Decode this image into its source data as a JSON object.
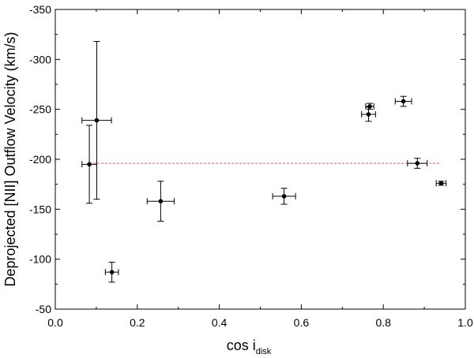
{
  "chart_data": {
    "type": "scatter",
    "xlabel": "cos i",
    "xlabel_subscript": "disk",
    "ylabel": "Deprojected [NII] Outflow Velocity  (km/s)",
    "xlim": [
      0.0,
      1.0
    ],
    "ylim": [
      -50,
      -350
    ],
    "y_axis_inverted": true,
    "grid": false,
    "legend": "none",
    "x_ticks": [
      "0.0",
      "0.2",
      "0.4",
      "0.6",
      "0.8",
      "1.0"
    ],
    "y_ticks": [
      "-50",
      "-100",
      "-150",
      "-200",
      "-250",
      "-300",
      "-350"
    ],
    "points": [
      {
        "x": 0.083,
        "y": -195,
        "xerr": 0.018,
        "yerr": 39
      },
      {
        "x": 0.101,
        "y": -239,
        "xerr": 0.036,
        "yerr": 79
      },
      {
        "x": 0.138,
        "y": -87,
        "xerr": 0.016,
        "yerr": 10
      },
      {
        "x": 0.257,
        "y": -158,
        "xerr": 0.033,
        "yerr": 20
      },
      {
        "x": 0.558,
        "y": -163,
        "xerr": 0.028,
        "yerr": 8
      },
      {
        "x": 0.764,
        "y": -245,
        "xerr": 0.017,
        "yerr": 7
      },
      {
        "x": 0.767,
        "y": -253,
        "xerr": 0.01,
        "yerr": 3
      },
      {
        "x": 0.849,
        "y": -258,
        "xerr": 0.02,
        "yerr": 5
      },
      {
        "x": 0.883,
        "y": -196,
        "xerr": 0.024,
        "yerr": 5
      },
      {
        "x": 0.941,
        "y": -176,
        "xerr": 0.012,
        "yerr": 2
      }
    ],
    "reference_line": {
      "y": -196,
      "x_range": [
        0.083,
        0.941
      ],
      "style": "dashed"
    },
    "colors": {
      "points": "#000000",
      "reference_line": "#ff4d4d"
    }
  }
}
